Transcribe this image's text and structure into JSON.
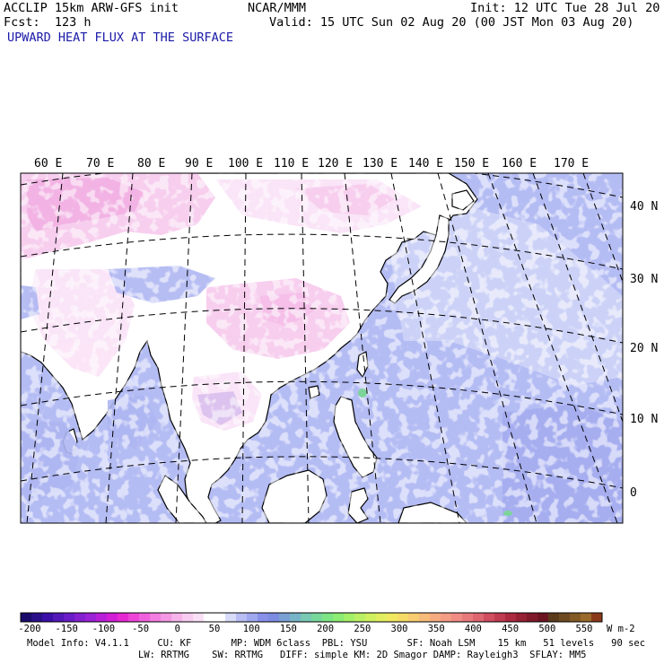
{
  "header": {
    "model": "ACCLIP 15km ARW-GFS init",
    "center": "NCAR/MMM",
    "init": "Init: 12 UTC Tue 28 Jul 20",
    "fcst": "Fcst:  123 h",
    "valid": "Valid: 15 UTC Sun 02 Aug 20 (00 JST Mon 03 Aug 20)",
    "field": "UPWARD HEAT FLUX AT THE SURFACE"
  },
  "map": {
    "lon_labels": [
      "60 E",
      "70 E",
      "80 E",
      "90 E",
      "100 E",
      "110 E",
      "120 E",
      "130 E",
      "140 E",
      "150 E",
      "160 E",
      "170 E"
    ],
    "lat_labels": [
      "40 N",
      "30 N",
      "20 N",
      "10 N",
      "0"
    ]
  },
  "colorbar": {
    "ticks": [
      "-200",
      "-150",
      "-100",
      "-50",
      "0",
      "50",
      "100",
      "150",
      "200",
      "250",
      "300",
      "350",
      "400",
      "450",
      "500",
      "550"
    ],
    "units": "W m-2",
    "colors": [
      "#1a0a6a",
      "#2a0f8a",
      "#3b10a8",
      "#5218b8",
      "#6a1cc8",
      "#8420d0",
      "#9b22d6",
      "#b81fd8",
      "#d21ed6",
      "#e628d2",
      "#ee44d8",
      "#f060dc",
      "#f27ce0",
      "#f498e4",
      "#f6b4ea",
      "#f8ccf0",
      "#fae0f6",
      "#ffffff",
      "#ffffff",
      "#d8dcf8",
      "#b8bef4",
      "#a0a8f0",
      "#8890ea",
      "#7c8ce0",
      "#7aa0d4",
      "#78b4c8",
      "#78c8b4",
      "#78d89c",
      "#7ce484",
      "#8cec74",
      "#a4f068",
      "#bcf064",
      "#d0f060",
      "#e2ee60",
      "#f0e860",
      "#f6dc66",
      "#f8cc70",
      "#f8bc7a",
      "#f6ac80",
      "#f49c84",
      "#f08c84",
      "#e87a7c",
      "#de6670",
      "#d04e60",
      "#c03a50",
      "#ac2a40",
      "#962034",
      "#801a2a",
      "#6c1422",
      "#5c3a1c",
      "#6e4a20",
      "#845a24",
      "#9a6a2a",
      "#8a3a1a"
    ]
  },
  "footer": {
    "line1": "Model Info: V4.1.1     CU: KF       MP: WDM 6class  PBL: YSU       SF: Noah LSM    15 km   51 levels   90 sec",
    "line2": "LW: RRTMG    SW: RRTMG   DIFF: simple KM: 2D Smagor DAMP: Rayleigh3  SFLAY: MM5"
  }
}
